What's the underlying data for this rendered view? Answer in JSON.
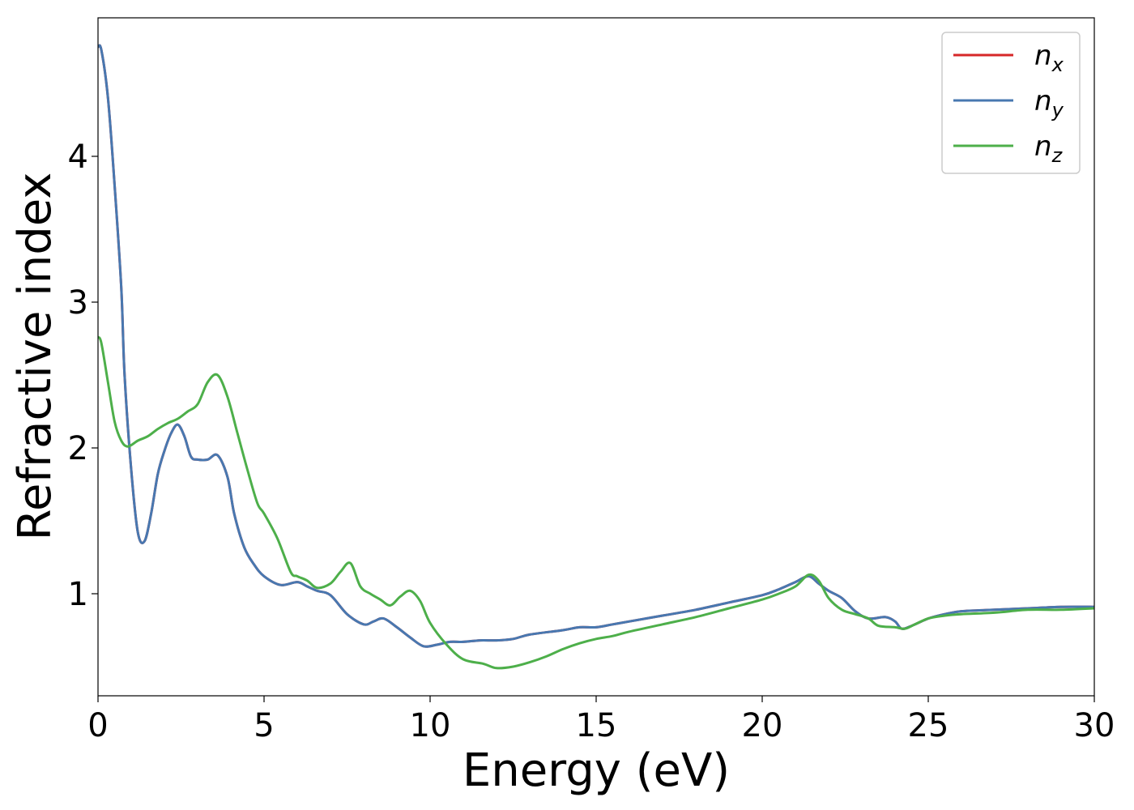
{
  "chart_data": {
    "type": "line",
    "title": "",
    "xlabel": "Energy (eV)",
    "ylabel": "Refractive index",
    "xlim": [
      0,
      30
    ],
    "ylim": [
      0.3,
      4.95
    ],
    "xticks": [
      0,
      5,
      10,
      15,
      20,
      25,
      30
    ],
    "yticks": [
      1,
      2,
      3,
      4
    ],
    "grid": false,
    "legend_position": "top-right",
    "series": [
      {
        "name": "n",
        "subscript": "x",
        "color": "#d62728",
        "x": [
          0,
          0.1,
          0.3,
          0.5,
          0.7,
          0.8,
          1.0,
          1.2,
          1.4,
          1.6,
          1.8,
          2.0,
          2.2,
          2.4,
          2.6,
          2.8,
          3.0,
          3.3,
          3.6,
          3.9,
          4.1,
          4.4,
          4.7,
          5.0,
          5.5,
          6.0,
          6.3,
          6.6,
          7.0,
          7.5,
          8.0,
          8.3,
          8.6,
          9.0,
          9.4,
          9.8,
          10.2,
          10.6,
          11.0,
          11.5,
          12.0,
          12.5,
          13.0,
          14.0,
          14.5,
          15.0,
          15.5,
          16.0,
          17.0,
          18.0,
          19.0,
          20.0,
          20.5,
          21.0,
          21.4,
          21.7,
          22.0,
          22.4,
          22.8,
          23.2,
          23.7,
          24.0,
          24.2,
          24.5,
          25.0,
          25.5,
          26.0,
          27.0,
          28.0,
          29.0,
          30.0
        ],
        "y": [
          4.75,
          4.73,
          4.4,
          3.8,
          3.1,
          2.5,
          1.85,
          1.42,
          1.36,
          1.55,
          1.82,
          1.98,
          2.1,
          2.16,
          2.08,
          1.94,
          1.92,
          1.92,
          1.95,
          1.8,
          1.55,
          1.32,
          1.2,
          1.12,
          1.06,
          1.08,
          1.05,
          1.02,
          0.99,
          0.86,
          0.79,
          0.81,
          0.83,
          0.77,
          0.7,
          0.64,
          0.65,
          0.67,
          0.67,
          0.68,
          0.68,
          0.69,
          0.72,
          0.75,
          0.77,
          0.77,
          0.79,
          0.81,
          0.85,
          0.89,
          0.94,
          0.99,
          1.03,
          1.08,
          1.12,
          1.07,
          1.02,
          0.97,
          0.88,
          0.83,
          0.84,
          0.81,
          0.76,
          0.78,
          0.83,
          0.86,
          0.88,
          0.89,
          0.9,
          0.91,
          0.91
        ]
      },
      {
        "name": "n",
        "subscript": "y",
        "color": "#4878b0",
        "x": [
          0,
          0.1,
          0.3,
          0.5,
          0.7,
          0.8,
          1.0,
          1.2,
          1.4,
          1.6,
          1.8,
          2.0,
          2.2,
          2.4,
          2.6,
          2.8,
          3.0,
          3.3,
          3.6,
          3.9,
          4.1,
          4.4,
          4.7,
          5.0,
          5.5,
          6.0,
          6.3,
          6.6,
          7.0,
          7.5,
          8.0,
          8.3,
          8.6,
          9.0,
          9.4,
          9.8,
          10.2,
          10.6,
          11.0,
          11.5,
          12.0,
          12.5,
          13.0,
          14.0,
          14.5,
          15.0,
          15.5,
          16.0,
          17.0,
          18.0,
          19.0,
          20.0,
          20.5,
          21.0,
          21.4,
          21.7,
          22.0,
          22.4,
          22.8,
          23.2,
          23.7,
          24.0,
          24.2,
          24.5,
          25.0,
          25.5,
          26.0,
          27.0,
          28.0,
          29.0,
          30.0
        ],
        "y": [
          4.75,
          4.73,
          4.4,
          3.8,
          3.1,
          2.5,
          1.85,
          1.42,
          1.36,
          1.55,
          1.82,
          1.98,
          2.1,
          2.16,
          2.08,
          1.94,
          1.92,
          1.92,
          1.95,
          1.8,
          1.55,
          1.32,
          1.2,
          1.12,
          1.06,
          1.08,
          1.05,
          1.02,
          0.99,
          0.86,
          0.79,
          0.81,
          0.83,
          0.77,
          0.7,
          0.64,
          0.65,
          0.67,
          0.67,
          0.68,
          0.68,
          0.69,
          0.72,
          0.75,
          0.77,
          0.77,
          0.79,
          0.81,
          0.85,
          0.89,
          0.94,
          0.99,
          1.03,
          1.08,
          1.12,
          1.07,
          1.02,
          0.97,
          0.88,
          0.83,
          0.84,
          0.81,
          0.76,
          0.78,
          0.83,
          0.86,
          0.88,
          0.89,
          0.9,
          0.91,
          0.91
        ]
      },
      {
        "name": "n",
        "subscript": "z",
        "color": "#4daf4a",
        "x": [
          0,
          0.1,
          0.3,
          0.5,
          0.7,
          0.9,
          1.2,
          1.5,
          1.8,
          2.1,
          2.4,
          2.7,
          3.0,
          3.3,
          3.6,
          3.9,
          4.2,
          4.5,
          4.8,
          5.0,
          5.4,
          5.8,
          6.0,
          6.3,
          6.6,
          7.0,
          7.3,
          7.6,
          7.9,
          8.2,
          8.5,
          8.8,
          9.1,
          9.4,
          9.7,
          10.0,
          10.5,
          11.0,
          11.6,
          12.0,
          12.5,
          13.0,
          13.5,
          14.0,
          14.5,
          15.0,
          15.5,
          16.0,
          17.0,
          18.0,
          19.0,
          20.0,
          20.5,
          21.0,
          21.4,
          21.7,
          22.0,
          22.4,
          22.8,
          23.2,
          23.5,
          24.0,
          24.3,
          24.6,
          25.0,
          25.5,
          26.0,
          27.0,
          28.0,
          29.0,
          30.0
        ],
        "y": [
          2.76,
          2.72,
          2.45,
          2.18,
          2.05,
          2.01,
          2.05,
          2.08,
          2.13,
          2.17,
          2.2,
          2.25,
          2.3,
          2.45,
          2.5,
          2.35,
          2.1,
          1.85,
          1.62,
          1.55,
          1.38,
          1.15,
          1.12,
          1.09,
          1.04,
          1.07,
          1.15,
          1.21,
          1.05,
          1.0,
          0.96,
          0.92,
          0.98,
          1.02,
          0.95,
          0.8,
          0.65,
          0.55,
          0.52,
          0.49,
          0.5,
          0.53,
          0.57,
          0.62,
          0.66,
          0.69,
          0.71,
          0.74,
          0.79,
          0.84,
          0.9,
          0.96,
          1.0,
          1.05,
          1.13,
          1.09,
          0.97,
          0.89,
          0.86,
          0.83,
          0.78,
          0.77,
          0.76,
          0.79,
          0.83,
          0.85,
          0.86,
          0.87,
          0.89,
          0.89,
          0.9
        ]
      }
    ]
  }
}
